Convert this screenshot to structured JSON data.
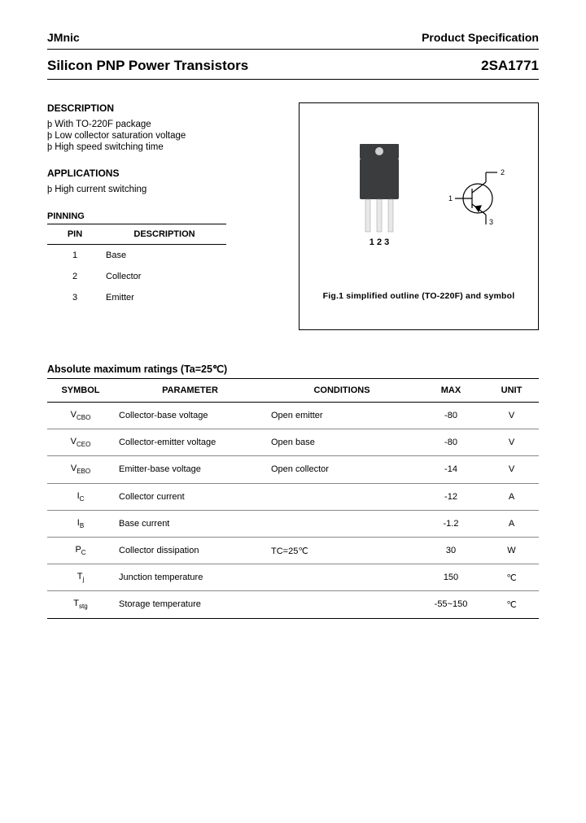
{
  "header": {
    "brand": "JMnic",
    "spec_label": "Product Specification"
  },
  "title": {
    "left": "Silicon PNP Power Transistors",
    "part": "2SA1771"
  },
  "sections": {
    "description_heading": "DESCRIPTION",
    "description_items": [
      "With TO-220F package",
      "Low collector saturation voltage",
      "High speed switching time"
    ],
    "applications_heading": "APPLICATIONS",
    "applications_items": [
      "High current switching"
    ],
    "bullet_glyph": "þ",
    "pinning_heading": "PINNING",
    "pin_header": [
      "PIN",
      "DESCRIPTION"
    ],
    "pins": [
      {
        "n": "1",
        "d": "Base"
      },
      {
        "n": "2",
        "d": "Collector"
      },
      {
        "n": "3",
        "d": "Emitter"
      }
    ]
  },
  "figure": {
    "pin_labels": "1 2 3",
    "sym_labels": {
      "1": "1",
      "2": "2",
      "3": "3"
    },
    "caption": "Fig.1 simplified outline (TO-220F) and symbol",
    "colors": {
      "pkg_body": "#3b3c3d",
      "pkg_tab": "#d0d0d0",
      "pkg_lead": "#e8e8e8",
      "outline": "#555555"
    }
  },
  "ratings": {
    "heading": "Absolute maximum ratings (Ta=25℃)",
    "columns": [
      "SYMBOL",
      "PARAMETER",
      "CONDITIONS",
      "MAX",
      "UNIT"
    ],
    "rows": [
      {
        "sym_main": "V",
        "sym_sub": "CBO",
        "param": "Collector-base voltage",
        "cond": "Open emitter",
        "max": "-80",
        "unit": "V"
      },
      {
        "sym_main": "V",
        "sym_sub": "CEO",
        "param": "Collector-emitter voltage",
        "cond": "Open base",
        "max": "-80",
        "unit": "V"
      },
      {
        "sym_main": "V",
        "sym_sub": "EBO",
        "param": "Emitter-base voltage",
        "cond": "Open collector",
        "max": "-14",
        "unit": "V"
      },
      {
        "sym_main": "I",
        "sym_sub": "C",
        "param": "Collector current",
        "cond": "",
        "max": "-12",
        "unit": "A"
      },
      {
        "sym_main": "I",
        "sym_sub": "B",
        "param": "Base current",
        "cond": "",
        "max": "-1.2",
        "unit": "A"
      },
      {
        "sym_main": "P",
        "sym_sub": "C",
        "param": "Collector dissipation",
        "cond": "TC=25℃",
        "max": "30",
        "unit": "W"
      },
      {
        "sym_main": "T",
        "sym_sub": "j",
        "param": "Junction temperature",
        "cond": "",
        "max": "150",
        "unit": "℃"
      },
      {
        "sym_main": "T",
        "sym_sub": "stg",
        "param": "Storage temperature",
        "cond": "",
        "max": "-55~150",
        "unit": "℃"
      }
    ]
  }
}
